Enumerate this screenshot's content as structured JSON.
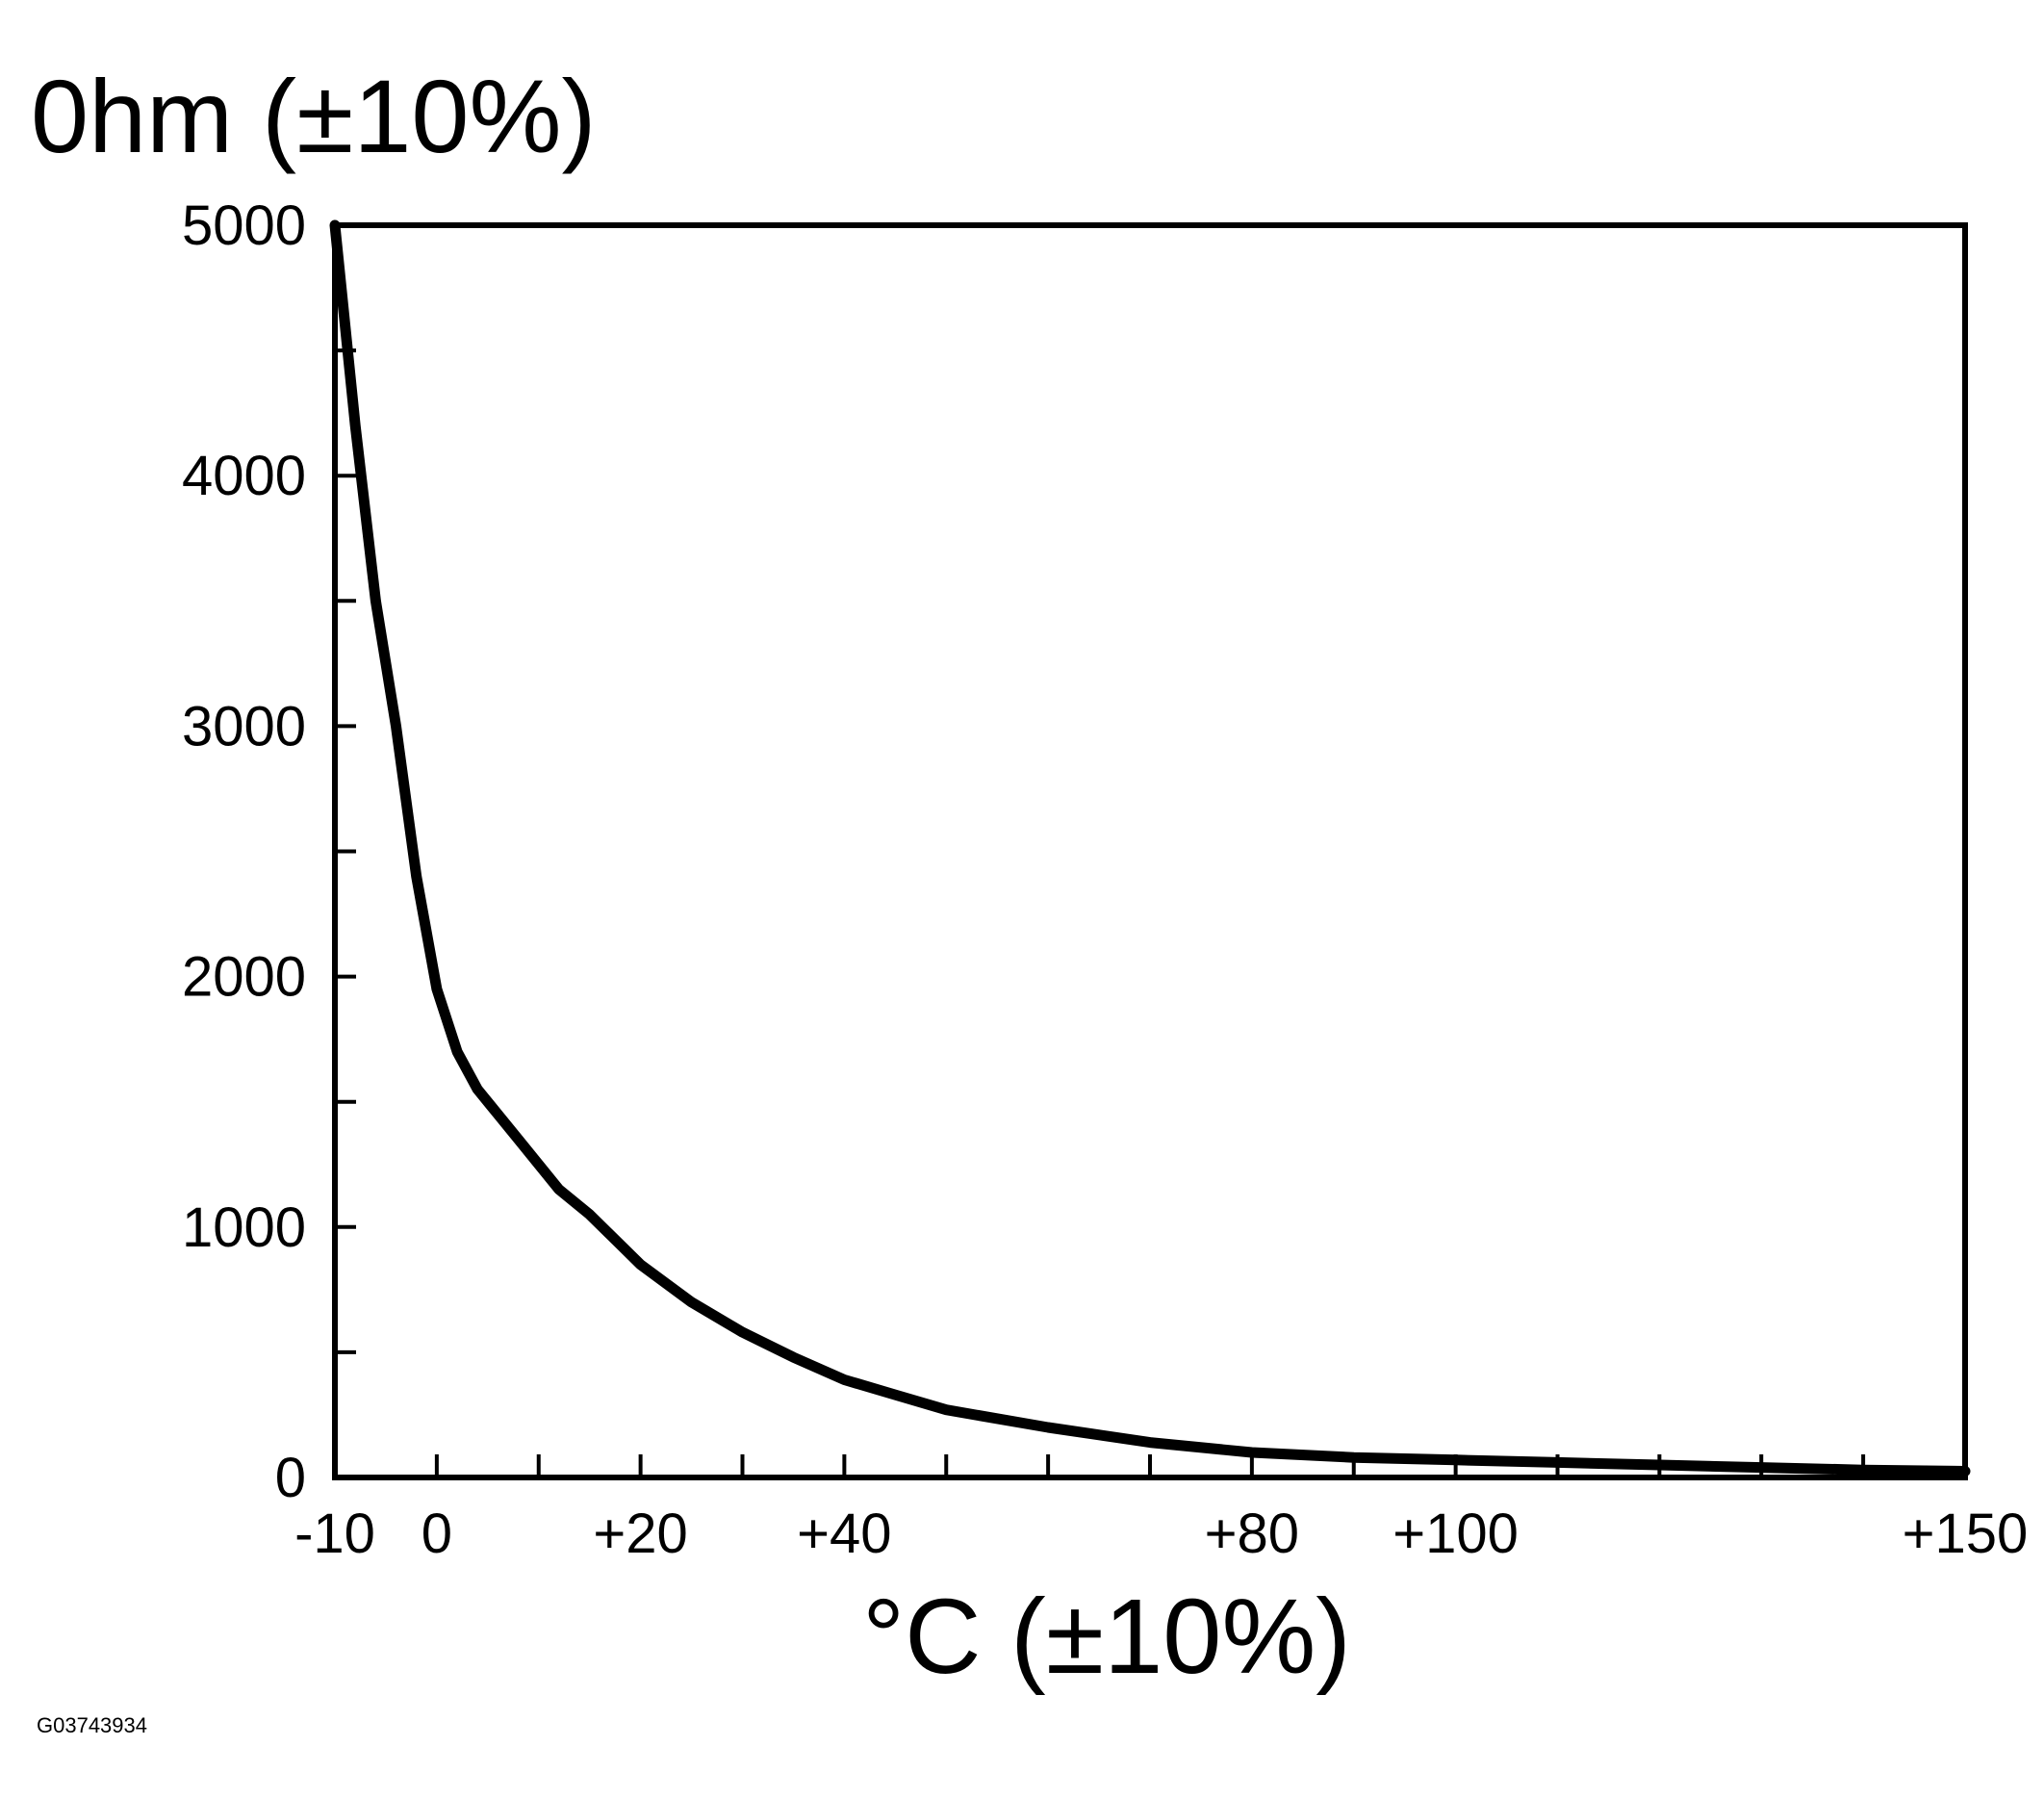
{
  "figure_id": "G03743934",
  "chart_data": {
    "type": "line",
    "title": "",
    "xlabel": "°C (±10%)",
    "ylabel": "0hm (±10%)",
    "xlim": [
      -10,
      150
    ],
    "ylim": [
      0,
      5000
    ],
    "grid": false,
    "x_ticks": [
      -10,
      0,
      10,
      20,
      30,
      40,
      50,
      60,
      70,
      80,
      90,
      100,
      110,
      120,
      130,
      140,
      150
    ],
    "x_tick_labels": [
      {
        "value": -10,
        "label": "-10"
      },
      {
        "value": 0,
        "label": "0"
      },
      {
        "value": 20,
        "label": "+20"
      },
      {
        "value": 40,
        "label": "+40"
      },
      {
        "value": 80,
        "label": "+80"
      },
      {
        "value": 100,
        "label": "+100"
      },
      {
        "value": 150,
        "label": "+150"
      }
    ],
    "y_ticks": [
      0,
      500,
      1000,
      1500,
      2000,
      2500,
      3000,
      3500,
      4000,
      4500,
      5000
    ],
    "y_tick_labels": [
      {
        "value": 0,
        "label": "0"
      },
      {
        "value": 1000,
        "label": "1000"
      },
      {
        "value": 2000,
        "label": "2000"
      },
      {
        "value": 3000,
        "label": "3000"
      },
      {
        "value": 4000,
        "label": "4000"
      },
      {
        "value": 5000,
        "label": "5000"
      }
    ],
    "series": [
      {
        "color": "#000000",
        "x": [
          -10,
          -8,
          -6,
          -4,
          -2,
          0,
          2,
          4,
          6,
          8,
          10,
          12,
          15,
          20,
          25,
          30,
          35,
          40,
          45,
          50,
          60,
          70,
          80,
          90,
          100,
          110,
          120,
          130,
          140,
          150
        ],
        "y": [
          5000,
          4200,
          3500,
          3000,
          2400,
          1950,
          1700,
          1550,
          1450,
          1350,
          1250,
          1150,
          1050,
          850,
          700,
          580,
          480,
          390,
          330,
          270,
          200,
          140,
          100,
          80,
          70,
          60,
          50,
          40,
          30,
          25
        ]
      }
    ]
  }
}
